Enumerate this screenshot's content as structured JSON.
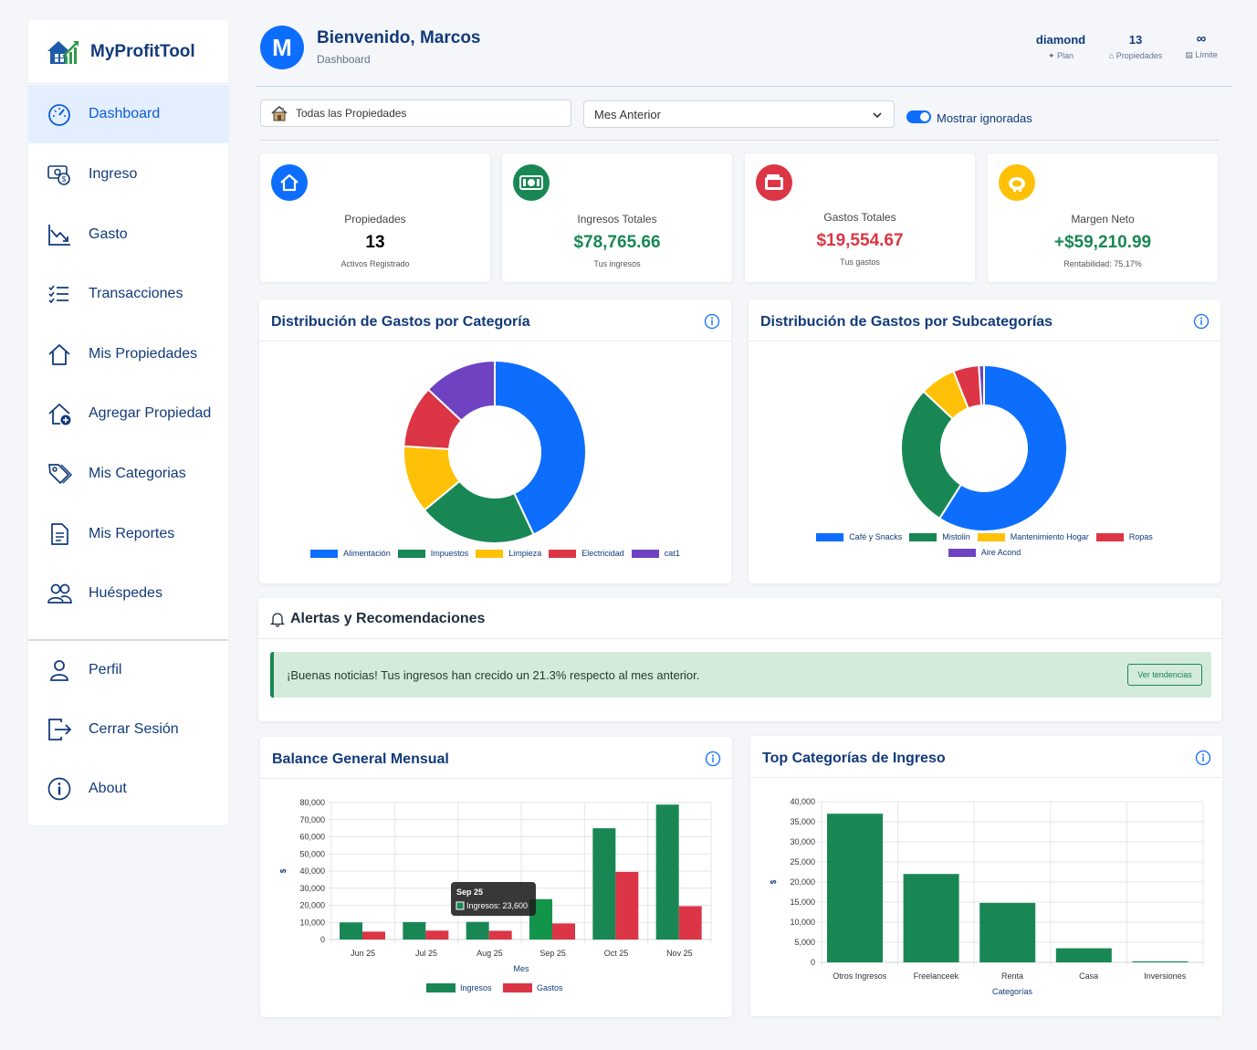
{
  "app": {
    "name": "MyProfitTool"
  },
  "sidebar": {
    "items": [
      {
        "label": "Dashboard",
        "icon": "speedometer-icon",
        "active": true
      },
      {
        "label": "Ingreso",
        "icon": "cash-coin-icon"
      },
      {
        "label": "Gasto",
        "icon": "graph-down-icon"
      },
      {
        "label": "Transacciones",
        "icon": "list-check-icon"
      },
      {
        "label": "Mis Propiedades",
        "icon": "house-icon"
      },
      {
        "label": "Agregar Propiedad",
        "icon": "house-add-icon"
      },
      {
        "label": "Mis Categorias",
        "icon": "tags-icon"
      },
      {
        "label": "Mis Reportes",
        "icon": "file-text-icon"
      },
      {
        "label": "Huéspedes",
        "icon": "people-icon"
      }
    ],
    "bottom": [
      {
        "label": "Perfil",
        "icon": "person-icon"
      },
      {
        "label": "Cerrar Sesión",
        "icon": "logout-icon"
      },
      {
        "label": "About",
        "icon": "info-circle-icon"
      }
    ]
  },
  "header": {
    "avatar_letter": "M",
    "welcome": "Bienvenido, Marcos",
    "subtitle": "Dashboard",
    "stats": [
      {
        "value": "diamond",
        "label": "Plan",
        "icon": "sparkle-icon"
      },
      {
        "value": "13",
        "label": "Propiedades",
        "icon": "house-small-icon"
      },
      {
        "value": "∞",
        "label": "Límite",
        "icon": "database-icon"
      }
    ]
  },
  "filters": {
    "property": "Todas las Propiedades",
    "period": "Mes Anterior",
    "toggle_label": "Mostrar ignoradas",
    "toggle_on": true
  },
  "kpis": [
    {
      "title": "Propiedades",
      "value": "13",
      "sub": "Activos Registrado",
      "color": "#000000",
      "icon_bg": "#0d6efd",
      "icon": "house-icon"
    },
    {
      "title": "Ingresos Totales",
      "value": "$78,765.66",
      "sub": "Tus ingresos",
      "color": "#198754",
      "icon_bg": "#198754",
      "icon": "cash-icon"
    },
    {
      "title": "Gastos Totales",
      "value": "$19,554.67",
      "sub": "Tus gastos",
      "color": "#dc3545",
      "icon_bg": "#dc3545",
      "icon": "wallet-icon"
    },
    {
      "title": "Margen Neto",
      "value": "+$59,210.99",
      "sub": "Rentabilidad: 75.17%",
      "color": "#198754",
      "icon_bg": "#ffc107",
      "icon": "piggy-bank-icon"
    }
  ],
  "colors": {
    "blue": "#0d6efd",
    "green": "#198754",
    "yellow": "#ffc107",
    "red": "#dc3545",
    "purple": "#6f42c1"
  },
  "panels": {
    "cat_title": "Distribución de Gastos por Categoría",
    "sub_title": "Distribución de Gastos por Subcategorías",
    "alerts_title": "Alertas y Recomendaciones",
    "balance_title": "Balance General Mensual",
    "top_title": "Top Categorías de Ingreso"
  },
  "alert": {
    "message": "¡Buenas noticias! Tus ingresos han crecido un 21.3% respecto al mes anterior.",
    "button": "Ver tendencias"
  },
  "chart_data": [
    {
      "type": "pie",
      "donut": true,
      "title": "Distribución de Gastos por Categoría",
      "categories": [
        "Alimentación",
        "Impuestos",
        "Limpieza",
        "Electricidad",
        "cat1"
      ],
      "values": [
        43,
        21,
        12,
        11,
        13
      ],
      "colors": [
        "#0d6efd",
        "#198754",
        "#ffc107",
        "#dc3545",
        "#6f42c1"
      ]
    },
    {
      "type": "pie",
      "donut": true,
      "title": "Distribución de Gastos por Subcategorías",
      "categories": [
        "Café y Snacks",
        "Mistolin",
        "Mantenimiento Hogar",
        "Ropas",
        "Aire Acond"
      ],
      "values": [
        59,
        28,
        7,
        5,
        1
      ],
      "colors": [
        "#0d6efd",
        "#198754",
        "#ffc107",
        "#dc3545",
        "#6f42c1"
      ]
    },
    {
      "type": "bar",
      "title": "Balance General Mensual",
      "xlabel": "Mes",
      "ylabel": "$",
      "categories": [
        "Jun 25",
        "Jul 25",
        "Aug 25",
        "Sep 25",
        "Oct 25",
        "Nov 25"
      ],
      "ylim": [
        0,
        80000
      ],
      "yticks": [
        "80,000",
        "70,000",
        "60,000",
        "50,000",
        "40,000",
        "30,000",
        "20,000",
        "10,000",
        "0"
      ],
      "series": [
        {
          "name": "Ingresos",
          "color": "#198754",
          "values": [
            10000,
            10200,
            10300,
            23600,
            65000,
            78800
          ]
        },
        {
          "name": "Gastos",
          "color": "#dc3545",
          "values": [
            4600,
            5200,
            5100,
            9400,
            39500,
            19500
          ]
        }
      ],
      "tooltip": {
        "title": "Sep 25",
        "label": "Ingresos: 23,600"
      }
    },
    {
      "type": "bar",
      "title": "Top Categorías de Ingreso",
      "xlabel": "Categorías",
      "ylabel": "$",
      "categories": [
        "Otros Ingresos",
        "Freelanceek",
        "Renta",
        "Casa",
        "Inversiones"
      ],
      "ylim": [
        0,
        40000
      ],
      "yticks": [
        "40,000",
        "35,000",
        "30,000",
        "25,000",
        "20,000",
        "15,000",
        "10,000",
        "5,000",
        "0"
      ],
      "series": [
        {
          "name": "",
          "color": "#198754",
          "values": [
            37000,
            22000,
            14800,
            3500,
            250
          ]
        }
      ]
    }
  ]
}
